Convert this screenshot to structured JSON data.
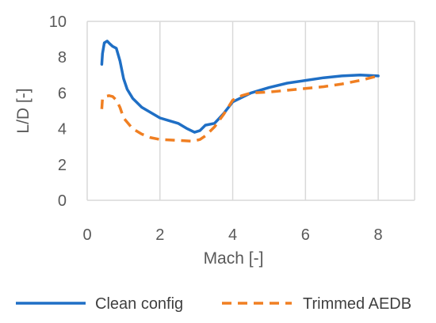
{
  "chart_data": {
    "type": "line",
    "title": "",
    "xlabel": "Mach [-]",
    "ylabel": "L/D [-]",
    "xlim": [
      0,
      9
    ],
    "ylim": [
      0,
      10
    ],
    "xticks": [
      0,
      2,
      4,
      6,
      8
    ],
    "yticks": [
      0,
      2,
      4,
      6,
      8,
      10
    ],
    "grid": "vertical",
    "legend_position": "bottom",
    "series": [
      {
        "name": "Clean config",
        "color": "#1f6fc5",
        "style": "solid",
        "points": [
          [
            0.4,
            7.6
          ],
          [
            0.42,
            8.2
          ],
          [
            0.47,
            8.8
          ],
          [
            0.55,
            8.9
          ],
          [
            0.62,
            8.75
          ],
          [
            0.7,
            8.6
          ],
          [
            0.8,
            8.5
          ],
          [
            0.9,
            7.8
          ],
          [
            1.0,
            6.8
          ],
          [
            1.1,
            6.2
          ],
          [
            1.25,
            5.7
          ],
          [
            1.5,
            5.2
          ],
          [
            1.75,
            4.9
          ],
          [
            2.0,
            4.6
          ],
          [
            2.25,
            4.45
          ],
          [
            2.5,
            4.3
          ],
          [
            2.75,
            4.0
          ],
          [
            2.95,
            3.8
          ],
          [
            3.1,
            3.9
          ],
          [
            3.25,
            4.2
          ],
          [
            3.5,
            4.3
          ],
          [
            3.75,
            4.85
          ],
          [
            4.0,
            5.5
          ],
          [
            4.5,
            6.0
          ],
          [
            5.0,
            6.3
          ],
          [
            5.5,
            6.55
          ],
          [
            6.0,
            6.7
          ],
          [
            6.5,
            6.85
          ],
          [
            7.0,
            6.95
          ],
          [
            7.5,
            7.0
          ],
          [
            8.0,
            6.95
          ]
        ]
      },
      {
        "name": "Trimmed AEDB",
        "color": "#f07f22",
        "style": "dashed",
        "points": [
          [
            0.4,
            5.1
          ],
          [
            0.42,
            5.7
          ],
          [
            0.5,
            5.8
          ],
          [
            0.6,
            5.85
          ],
          [
            0.7,
            5.8
          ],
          [
            0.8,
            5.6
          ],
          [
            0.9,
            5.2
          ],
          [
            1.0,
            4.6
          ],
          [
            1.25,
            4.0
          ],
          [
            1.5,
            3.7
          ],
          [
            1.75,
            3.5
          ],
          [
            2.0,
            3.4
          ],
          [
            2.5,
            3.35
          ],
          [
            2.9,
            3.3
          ],
          [
            3.1,
            3.4
          ],
          [
            3.25,
            3.6
          ],
          [
            3.5,
            4.1
          ],
          [
            3.75,
            4.8
          ],
          [
            4.0,
            5.6
          ],
          [
            4.25,
            5.85
          ],
          [
            4.5,
            6.0
          ],
          [
            5.0,
            6.05
          ],
          [
            5.5,
            6.15
          ],
          [
            6.0,
            6.25
          ],
          [
            6.5,
            6.35
          ],
          [
            7.0,
            6.5
          ],
          [
            7.5,
            6.7
          ],
          [
            8.0,
            6.95
          ]
        ]
      }
    ]
  }
}
